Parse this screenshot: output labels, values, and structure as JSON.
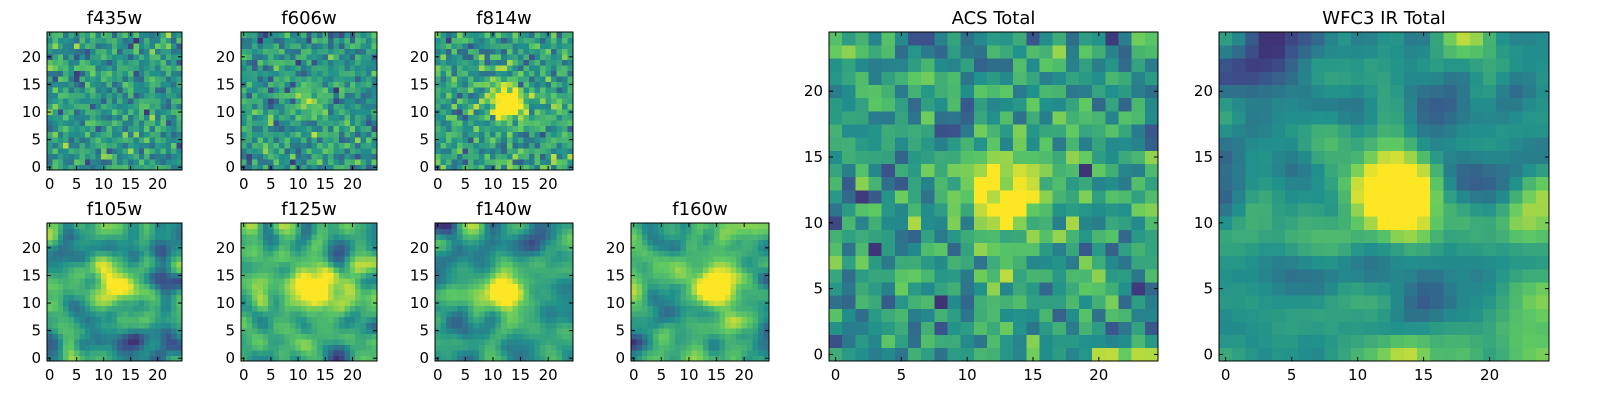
{
  "figure": {
    "colormap": "viridis",
    "colormap_stops": [
      "#440154",
      "#3b528b",
      "#21918c",
      "#5ec962",
      "#fde725"
    ],
    "grid": false
  },
  "chart_data": [
    {
      "type": "heatmap",
      "title": "f435w",
      "shape": [
        25,
        25
      ],
      "xlim": [
        -0.5,
        24.5
      ],
      "ylim": [
        -0.5,
        24.5
      ],
      "xticks": [
        0,
        5,
        10,
        15,
        20
      ],
      "yticks": [
        0,
        5,
        10,
        15,
        20
      ],
      "source_center": null,
      "source_strength": 0.0,
      "smoothness": 0.0,
      "seed": 11
    },
    {
      "type": "heatmap",
      "title": "f606w",
      "shape": [
        25,
        25
      ],
      "xlim": [
        -0.5,
        24.5
      ],
      "ylim": [
        -0.5,
        24.5
      ],
      "xticks": [
        0,
        5,
        10,
        15,
        20
      ],
      "yticks": [
        0,
        5,
        10,
        15,
        20
      ],
      "source_center": [
        12,
        12
      ],
      "source_strength": 0.25,
      "smoothness": 0.0,
      "seed": 23
    },
    {
      "type": "heatmap",
      "title": "f814w",
      "shape": [
        25,
        25
      ],
      "xlim": [
        -0.5,
        24.5
      ],
      "ylim": [
        -0.5,
        24.5
      ],
      "xticks": [
        0,
        5,
        10,
        15,
        20
      ],
      "yticks": [
        0,
        5,
        10,
        15,
        20
      ],
      "source_center": [
        13,
        12
      ],
      "source_strength": 0.6,
      "smoothness": 0.0,
      "seed": 37
    },
    {
      "type": "heatmap",
      "title": "f105w",
      "shape": [
        25,
        25
      ],
      "xlim": [
        -0.5,
        24.5
      ],
      "ylim": [
        -0.5,
        24.5
      ],
      "xticks": [
        0,
        5,
        10,
        15,
        20
      ],
      "yticks": [
        0,
        5,
        10,
        15,
        20
      ],
      "source_center": [
        13,
        13
      ],
      "source_strength": 0.8,
      "smoothness": 0.6,
      "seed": 41
    },
    {
      "type": "heatmap",
      "title": "f125w",
      "shape": [
        25,
        25
      ],
      "xlim": [
        -0.5,
        24.5
      ],
      "ylim": [
        -0.5,
        24.5
      ],
      "xticks": [
        0,
        5,
        10,
        15,
        20
      ],
      "yticks": [
        0,
        5,
        10,
        15,
        20
      ],
      "source_center": [
        13,
        13
      ],
      "source_strength": 0.7,
      "smoothness": 0.6,
      "seed": 53
    },
    {
      "type": "heatmap",
      "title": "f140w",
      "shape": [
        25,
        25
      ],
      "xlim": [
        -0.5,
        24.5
      ],
      "ylim": [
        -0.5,
        24.5
      ],
      "xticks": [
        0,
        5,
        10,
        15,
        20
      ],
      "yticks": [
        0,
        5,
        10,
        15,
        20
      ],
      "source_center": [
        12,
        12
      ],
      "source_strength": 0.7,
      "smoothness": 0.6,
      "seed": 67
    },
    {
      "type": "heatmap",
      "title": "f160w",
      "shape": [
        25,
        25
      ],
      "xlim": [
        -0.5,
        24.5
      ],
      "ylim": [
        -0.5,
        24.5
      ],
      "xticks": [
        0,
        5,
        10,
        15,
        20
      ],
      "yticks": [
        0,
        5,
        10,
        15,
        20
      ],
      "source_center": [
        14,
        13
      ],
      "source_strength": 0.8,
      "smoothness": 0.6,
      "seed": 79
    },
    {
      "type": "heatmap",
      "title": "ACS Total",
      "shape": [
        25,
        25
      ],
      "xlim": [
        -0.5,
        24.5
      ],
      "ylim": [
        -0.5,
        24.5
      ],
      "xticks": [
        0,
        5,
        10,
        15,
        20
      ],
      "yticks": [
        0,
        5,
        10,
        15,
        20
      ],
      "source_center": [
        13,
        12
      ],
      "source_strength": 0.6,
      "smoothness": 0.1,
      "seed": 83
    },
    {
      "type": "heatmap",
      "title": "WFC3 IR Total",
      "shape": [
        25,
        25
      ],
      "xlim": [
        -0.5,
        24.5
      ],
      "ylim": [
        -0.5,
        24.5
      ],
      "xticks": [
        0,
        5,
        10,
        15,
        20
      ],
      "yticks": [
        0,
        5,
        10,
        15,
        20
      ],
      "source_center": [
        13,
        12
      ],
      "source_strength": 0.9,
      "smoothness": 0.7,
      "seed": 97
    }
  ]
}
